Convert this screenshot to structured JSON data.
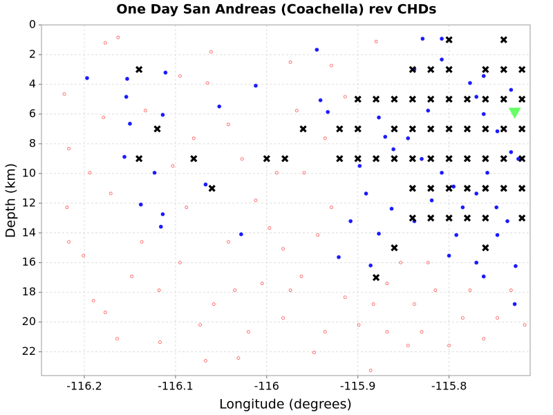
{
  "chart_data": {
    "type": "scatter",
    "title": "One Day San Andreas (Coachella) rev CHDs",
    "xlabel": "Longitude (degrees)",
    "ylabel": "Depth (km)",
    "xlim": [
      -116.247,
      -115.711
    ],
    "ylim": [
      0,
      23.6
    ],
    "y_inverted": true,
    "xticks": [
      -116.2,
      -116.1,
      -116,
      -115.9,
      -115.8
    ],
    "yticks": [
      0,
      2,
      4,
      6,
      8,
      10,
      12,
      14,
      16,
      18,
      20,
      22
    ],
    "grid": true,
    "series": [
      {
        "color": "#ff4d4d",
        "marker": "circle-open",
        "x": [
          -116.177,
          -116.163,
          -116.222,
          -116.217,
          -116.219,
          -116.217,
          -116.201,
          -116.19,
          -116.177,
          -116.164,
          -116.148,
          -116.137,
          -116.118,
          -116.117,
          -116.095,
          -116.088,
          -116.073,
          -116.067,
          -116.058,
          -116.035,
          -116.031,
          -116.02,
          -116.005,
          -115.997,
          -115.982,
          -115.974,
          -115.962,
          -115.948,
          -115.936,
          -115.929,
          -115.914,
          -115.899,
          -115.886,
          -115.883,
          -115.868,
          -115.845,
          -115.83,
          -115.815,
          -115.8,
          -115.785,
          -115.762,
          -115.747,
          -115.717,
          -115.732,
          -115.777,
          -115.823,
          -115.853,
          -115.838,
          -115.868,
          -115.936,
          -115.967,
          -115.989,
          -116.027,
          -116.042,
          -116.065,
          -116.08,
          -116.095,
          -116.133,
          -116.171,
          -116.194,
          -116.179,
          -116.061,
          -115.974,
          -115.929,
          -115.88,
          -115.914,
          -115.959,
          -116.012,
          -116.042,
          -116.103,
          -115.944,
          -115.982
        ],
        "values": [
          1.21,
          0.84,
          4.65,
          8.33,
          12.28,
          14.6,
          15.53,
          18.56,
          19.35,
          21.12,
          16.93,
          14.6,
          17.86,
          21.35,
          16.0,
          12.28,
          20.19,
          22.6,
          18.79,
          17.86,
          22.42,
          20.65,
          17.4,
          13.67,
          19.72,
          17.86,
          16.93,
          22.05,
          20.65,
          12.28,
          18.33,
          20.19,
          23.26,
          18.79,
          20.65,
          21.58,
          20.65,
          17.86,
          21.58,
          19.72,
          21.12,
          19.72,
          20.19,
          17.86,
          17.86,
          16.0,
          16.0,
          18.79,
          17.4,
          7.63,
          5.77,
          9.95,
          9.02,
          6.7,
          3.91,
          7.63,
          3.44,
          5.77,
          11.35,
          9.95,
          6.23,
          1.81,
          2.51,
          2.74,
          1.12,
          4.84,
          9.95,
          11.81,
          14.6,
          9.49,
          14.14,
          15.07
        ]
      },
      {
        "color": "#1a1aff",
        "marker": "circle",
        "x": [
          -116.197,
          -116.153,
          -116.154,
          -116.15,
          -116.156,
          -116.138,
          -116.114,
          -116.116,
          -116.123,
          -116.111,
          -116.114,
          -116.052,
          -116.067,
          -116.028,
          -116.012,
          -115.945,
          -115.941,
          -115.933,
          -115.921,
          -115.886,
          -115.908,
          -115.877,
          -115.863,
          -115.861,
          -115.877,
          -115.87,
          -115.829,
          -115.808,
          -115.808,
          -115.838,
          -115.777,
          -115.77,
          -115.762,
          -115.747,
          -115.732,
          -115.758,
          -115.77,
          -115.785,
          -115.792,
          -115.8,
          -115.77,
          -115.748,
          -115.747,
          -115.727,
          -115.728,
          -115.762,
          -115.808,
          -115.83,
          -115.845,
          -115.823,
          -115.762,
          -115.732,
          -115.736,
          -115.724,
          -115.795,
          -115.819,
          -115.838,
          -115.891,
          -115.898
        ],
        "values": [
          3.58,
          3.63,
          4.84,
          6.65,
          8.88,
          12.09,
          12.74,
          13.58,
          9.95,
          3.21,
          6.05,
          5.49,
          10.74,
          14.09,
          4.09,
          1.67,
          5.07,
          5.86,
          15.63,
          16.19,
          13.21,
          14.05,
          12.37,
          8.37,
          6.23,
          7.53,
          0.93,
          0.93,
          2.33,
          2.98,
          3.91,
          4.84,
          6.0,
          7.16,
          8.56,
          9.95,
          11.35,
          12.28,
          14.14,
          15.53,
          16.0,
          12.28,
          14.14,
          16.23,
          18.79,
          16.93,
          9.95,
          9.02,
          7.63,
          5.77,
          3.44,
          4.37,
          13.21,
          9.02,
          10.88,
          11.81,
          13.21,
          11.35,
          9.49
        ]
      },
      {
        "color": "#000000",
        "marker": "x",
        "x": [
          -115.8,
          -115.74,
          -116.14,
          -115.84,
          -115.82,
          -115.8,
          -115.76,
          -115.74,
          -115.72,
          -115.9,
          -115.88,
          -115.86,
          -115.84,
          -115.82,
          -115.8,
          -115.78,
          -115.76,
          -115.74,
          -115.72,
          -116.12,
          -115.96,
          -115.92,
          -115.9,
          -115.86,
          -115.84,
          -115.82,
          -115.8,
          -115.78,
          -115.76,
          -115.74,
          -115.72,
          -116.14,
          -116.08,
          -116,
          -115.98,
          -115.92,
          -115.9,
          -115.88,
          -115.86,
          -115.84,
          -115.82,
          -115.8,
          -115.78,
          -115.76,
          -115.74,
          -115.72,
          -116.06,
          -115.84,
          -115.82,
          -115.8,
          -115.78,
          -115.76,
          -115.74,
          -115.72,
          -115.84,
          -115.82,
          -115.8,
          -115.78,
          -115.76,
          -115.72,
          -115.86,
          -115.76,
          -115.88
        ],
        "values": [
          1,
          1,
          3,
          3,
          3,
          3,
          3,
          3,
          3,
          5,
          5,
          5,
          5,
          5,
          5,
          5,
          5,
          5,
          5,
          7,
          7,
          7,
          7,
          7,
          7,
          7,
          7,
          7,
          7,
          7,
          7,
          9,
          9,
          9,
          9,
          9,
          9,
          9,
          9,
          9,
          9,
          9,
          9,
          9,
          9,
          9,
          11,
          11,
          11,
          11,
          11,
          11,
          11,
          11,
          13,
          13,
          13,
          13,
          13,
          13,
          15,
          15,
          17
        ]
      },
      {
        "color": "#66ff66",
        "marker": "triangle-down",
        "x": [
          -115.728
        ],
        "values": [
          5.9
        ]
      }
    ]
  }
}
